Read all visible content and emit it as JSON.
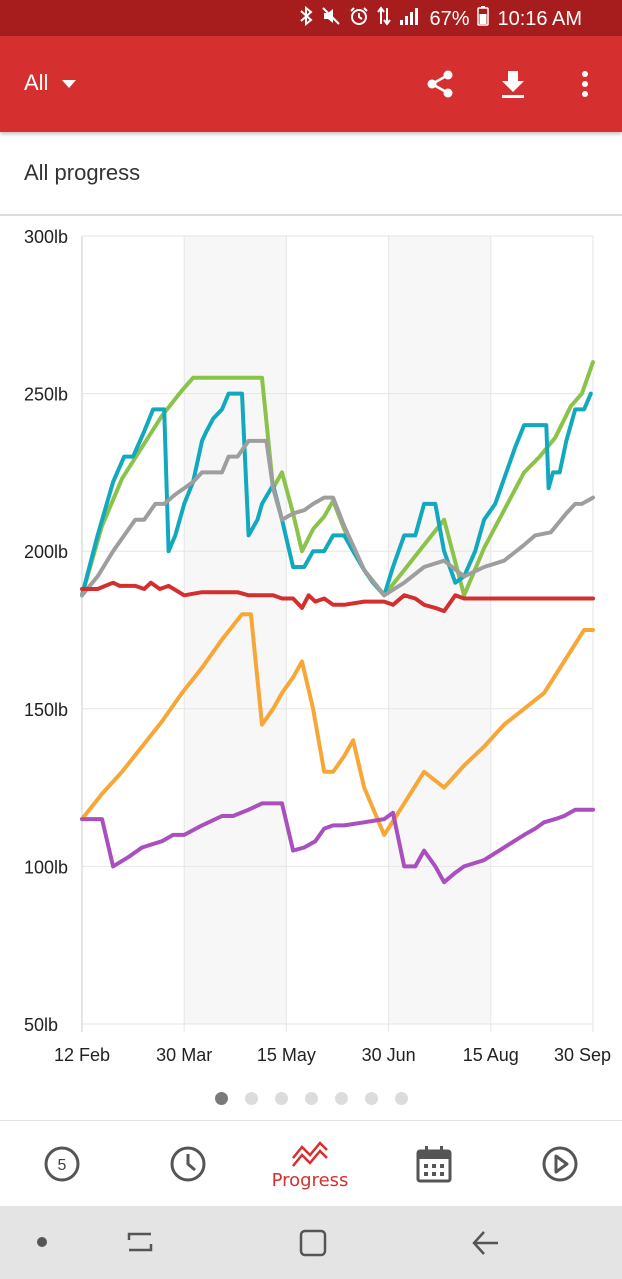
{
  "status_bar": {
    "battery": "67%",
    "time": "10:16 AM",
    "icons": [
      "bluetooth-icon",
      "mute-icon",
      "alarm-icon",
      "data-icon",
      "signal-icon",
      "battery-icon"
    ]
  },
  "app_bar": {
    "filter_label": "All",
    "actions": [
      "share-icon",
      "download-icon",
      "more-vert-icon"
    ]
  },
  "section": {
    "title": "All progress"
  },
  "colors": {
    "status_bar": "#a71d1d",
    "app_bar": "#d62f2f",
    "accent": "#d62f2f"
  },
  "chart_data": {
    "type": "line",
    "y_tick_labels": [
      "300lb",
      "250lb",
      "200lb",
      "150lb",
      "100lb",
      "50lb"
    ],
    "y_ticks": [
      300,
      250,
      200,
      150,
      100,
      50
    ],
    "ylim": [
      50,
      300
    ],
    "x_tick_labels": [
      "12 Feb",
      "30 Mar",
      "15 May",
      "30 Jun",
      "15 Aug",
      "30 Sep"
    ],
    "x_tick_dates": [
      "2018-02-12",
      "2018-03-30",
      "2018-05-15",
      "2018-06-30",
      "2018-08-15",
      "2018-09-30"
    ],
    "xlim": [
      "2018-02-12",
      "2018-09-30"
    ],
    "grid": true,
    "alternating_bands": true,
    "series": [
      {
        "color": "#8bc34a",
        "points": [
          [
            "2018-02-12",
            186
          ],
          [
            "2018-02-21",
            208
          ],
          [
            "2018-03-02",
            223
          ],
          [
            "2018-03-11",
            233
          ],
          [
            "2018-03-20",
            243
          ],
          [
            "2018-03-29",
            251
          ],
          [
            "2018-04-03",
            255
          ],
          [
            "2018-04-12",
            255
          ],
          [
            "2018-04-21",
            255
          ],
          [
            "2018-04-30",
            255
          ],
          [
            "2018-05-04",
            255
          ],
          [
            "2018-05-09",
            220
          ],
          [
            "2018-05-13",
            225
          ],
          [
            "2018-05-18",
            212
          ],
          [
            "2018-05-22",
            200
          ],
          [
            "2018-05-27",
            207
          ],
          [
            "2018-06-01",
            211
          ],
          [
            "2018-06-05",
            216
          ],
          [
            "2018-06-10",
            207
          ],
          [
            "2018-06-19",
            194
          ],
          [
            "2018-06-28",
            186
          ],
          [
            "2018-07-07",
            194
          ],
          [
            "2018-07-16",
            202
          ],
          [
            "2018-07-25",
            210
          ],
          [
            "2018-08-03",
            186
          ],
          [
            "2018-08-12",
            201
          ],
          [
            "2018-08-21",
            213
          ],
          [
            "2018-08-30",
            225
          ],
          [
            "2018-09-06",
            230
          ],
          [
            "2018-09-13",
            236
          ],
          [
            "2018-09-20",
            246
          ],
          [
            "2018-09-25",
            250
          ],
          [
            "2018-09-30",
            260
          ]
        ]
      },
      {
        "color": "#12a9bf",
        "points": [
          [
            "2018-02-12",
            186
          ],
          [
            "2018-02-19",
            205
          ],
          [
            "2018-02-26",
            222
          ],
          [
            "2018-03-03",
            230
          ],
          [
            "2018-03-07",
            230
          ],
          [
            "2018-03-12",
            238
          ],
          [
            "2018-03-16",
            245
          ],
          [
            "2018-03-21",
            245
          ],
          [
            "2018-03-23",
            200
          ],
          [
            "2018-03-26",
            205
          ],
          [
            "2018-03-30",
            215
          ],
          [
            "2018-04-03",
            222
          ],
          [
            "2018-04-07",
            235
          ],
          [
            "2018-04-09",
            238
          ],
          [
            "2018-04-12",
            242
          ],
          [
            "2018-04-16",
            245
          ],
          [
            "2018-04-19",
            250
          ],
          [
            "2018-04-25",
            250
          ],
          [
            "2018-04-28",
            205
          ],
          [
            "2018-05-02",
            210
          ],
          [
            "2018-05-04",
            215
          ],
          [
            "2018-05-09",
            221
          ],
          [
            "2018-05-13",
            210
          ],
          [
            "2018-05-18",
            195
          ],
          [
            "2018-05-23",
            195
          ],
          [
            "2018-05-27",
            200
          ],
          [
            "2018-06-01",
            200
          ],
          [
            "2018-06-05",
            205
          ],
          [
            "2018-06-10",
            205
          ],
          [
            "2018-06-14",
            200
          ],
          [
            "2018-06-19",
            194
          ],
          [
            "2018-06-23",
            190
          ],
          [
            "2018-06-28",
            186
          ],
          [
            "2018-07-02",
            195
          ],
          [
            "2018-07-07",
            205
          ],
          [
            "2018-07-12",
            205
          ],
          [
            "2018-07-16",
            215
          ],
          [
            "2018-07-21",
            215
          ],
          [
            "2018-07-25",
            200
          ],
          [
            "2018-07-30",
            190
          ],
          [
            "2018-08-03",
            192
          ],
          [
            "2018-08-08",
            200
          ],
          [
            "2018-08-12",
            210
          ],
          [
            "2018-08-17",
            215
          ],
          [
            "2018-08-21",
            223
          ],
          [
            "2018-08-26",
            233
          ],
          [
            "2018-08-30",
            240
          ],
          [
            "2018-09-04",
            240
          ],
          [
            "2018-09-09",
            240
          ],
          [
            "2018-09-10",
            220
          ],
          [
            "2018-09-12",
            225
          ],
          [
            "2018-09-15",
            225
          ],
          [
            "2018-09-18",
            235
          ],
          [
            "2018-09-22",
            245
          ],
          [
            "2018-09-26",
            245
          ],
          [
            "2018-09-29",
            250
          ]
        ]
      },
      {
        "color": "#9e9e9e",
        "points": [
          [
            "2018-02-12",
            186
          ],
          [
            "2018-02-19",
            192
          ],
          [
            "2018-02-26",
            200
          ],
          [
            "2018-03-03",
            205
          ],
          [
            "2018-03-08",
            210
          ],
          [
            "2018-03-12",
            210
          ],
          [
            "2018-03-17",
            215
          ],
          [
            "2018-03-21",
            215
          ],
          [
            "2018-03-26",
            218
          ],
          [
            "2018-03-30",
            220
          ],
          [
            "2018-04-03",
            222
          ],
          [
            "2018-04-07",
            225
          ],
          [
            "2018-04-12",
            225
          ],
          [
            "2018-04-16",
            225
          ],
          [
            "2018-04-19",
            230
          ],
          [
            "2018-04-23",
            230
          ],
          [
            "2018-04-28",
            235
          ],
          [
            "2018-05-02",
            235
          ],
          [
            "2018-05-06",
            235
          ],
          [
            "2018-05-09",
            220
          ],
          [
            "2018-05-13",
            210
          ],
          [
            "2018-05-18",
            212
          ],
          [
            "2018-05-23",
            213
          ],
          [
            "2018-05-27",
            215
          ],
          [
            "2018-06-01",
            217
          ],
          [
            "2018-06-05",
            217
          ],
          [
            "2018-06-10",
            208
          ],
          [
            "2018-06-19",
            194
          ],
          [
            "2018-06-28",
            186
          ],
          [
            "2018-07-07",
            190
          ],
          [
            "2018-07-16",
            195
          ],
          [
            "2018-07-25",
            197
          ],
          [
            "2018-08-03",
            192
          ],
          [
            "2018-08-12",
            195
          ],
          [
            "2018-08-21",
            197
          ],
          [
            "2018-08-30",
            202
          ],
          [
            "2018-09-04",
            205
          ],
          [
            "2018-09-11",
            206
          ],
          [
            "2018-09-18",
            212
          ],
          [
            "2018-09-22",
            215
          ],
          [
            "2018-09-25",
            215
          ],
          [
            "2018-09-30",
            217
          ]
        ]
      },
      {
        "color": "#d32f2f",
        "points": [
          [
            "2018-02-12",
            188
          ],
          [
            "2018-02-19",
            188
          ],
          [
            "2018-02-26",
            190
          ],
          [
            "2018-03-01",
            189
          ],
          [
            "2018-03-08",
            189
          ],
          [
            "2018-03-12",
            188
          ],
          [
            "2018-03-15",
            190
          ],
          [
            "2018-03-19",
            188
          ],
          [
            "2018-03-23",
            189
          ],
          [
            "2018-03-30",
            186
          ],
          [
            "2018-04-07",
            187
          ],
          [
            "2018-04-16",
            187
          ],
          [
            "2018-04-23",
            187
          ],
          [
            "2018-04-28",
            186
          ],
          [
            "2018-05-02",
            186
          ],
          [
            "2018-05-06",
            186
          ],
          [
            "2018-05-09",
            186
          ],
          [
            "2018-05-13",
            185
          ],
          [
            "2018-05-18",
            185
          ],
          [
            "2018-05-22",
            182
          ],
          [
            "2018-05-25",
            186
          ],
          [
            "2018-05-28",
            184
          ],
          [
            "2018-06-01",
            185
          ],
          [
            "2018-06-05",
            183
          ],
          [
            "2018-06-10",
            183
          ],
          [
            "2018-06-19",
            184
          ],
          [
            "2018-06-28",
            184
          ],
          [
            "2018-07-02",
            183
          ],
          [
            "2018-07-07",
            186
          ],
          [
            "2018-07-12",
            185
          ],
          [
            "2018-07-16",
            183
          ],
          [
            "2018-07-21",
            182
          ],
          [
            "2018-07-25",
            181
          ],
          [
            "2018-07-30",
            186
          ],
          [
            "2018-08-03",
            185
          ],
          [
            "2018-08-12",
            185
          ],
          [
            "2018-08-21",
            185
          ],
          [
            "2018-08-30",
            185
          ],
          [
            "2018-09-08",
            185
          ],
          [
            "2018-09-17",
            185
          ],
          [
            "2018-09-26",
            185
          ],
          [
            "2018-09-30",
            185
          ]
        ]
      },
      {
        "color": "#f7a738",
        "points": [
          [
            "2018-02-12",
            115
          ],
          [
            "2018-02-21",
            123
          ],
          [
            "2018-03-02",
            130
          ],
          [
            "2018-03-11",
            138
          ],
          [
            "2018-03-20",
            146
          ],
          [
            "2018-03-29",
            155
          ],
          [
            "2018-04-07",
            163
          ],
          [
            "2018-04-16",
            172
          ],
          [
            "2018-04-25",
            180
          ],
          [
            "2018-04-29",
            180
          ],
          [
            "2018-05-04",
            145
          ],
          [
            "2018-05-09",
            150
          ],
          [
            "2018-05-13",
            155
          ],
          [
            "2018-05-18",
            160
          ],
          [
            "2018-05-22",
            165
          ],
          [
            "2018-05-27",
            150
          ],
          [
            "2018-06-01",
            130
          ],
          [
            "2018-06-05",
            130
          ],
          [
            "2018-06-10",
            135
          ],
          [
            "2018-06-14",
            140
          ],
          [
            "2018-06-19",
            125
          ],
          [
            "2018-06-28",
            110
          ],
          [
            "2018-07-07",
            120
          ],
          [
            "2018-07-16",
            130
          ],
          [
            "2018-07-25",
            125
          ],
          [
            "2018-08-03",
            132
          ],
          [
            "2018-08-12",
            138
          ],
          [
            "2018-08-21",
            145
          ],
          [
            "2018-08-30",
            150
          ],
          [
            "2018-09-08",
            155
          ],
          [
            "2018-09-17",
            165
          ],
          [
            "2018-09-26",
            175
          ],
          [
            "2018-09-30",
            175
          ]
        ]
      },
      {
        "color": "#a94fbf",
        "points": [
          [
            "2018-02-12",
            115
          ],
          [
            "2018-02-21",
            115
          ],
          [
            "2018-02-26",
            100
          ],
          [
            "2018-03-05",
            103
          ],
          [
            "2018-03-11",
            106
          ],
          [
            "2018-03-20",
            108
          ],
          [
            "2018-03-25",
            110
          ],
          [
            "2018-03-30",
            110
          ],
          [
            "2018-04-07",
            113
          ],
          [
            "2018-04-16",
            116
          ],
          [
            "2018-04-21",
            116
          ],
          [
            "2018-04-28",
            118
          ],
          [
            "2018-05-04",
            120
          ],
          [
            "2018-05-09",
            120
          ],
          [
            "2018-05-13",
            120
          ],
          [
            "2018-05-18",
            105
          ],
          [
            "2018-05-23",
            106
          ],
          [
            "2018-05-28",
            108
          ],
          [
            "2018-06-01",
            112
          ],
          [
            "2018-06-05",
            113
          ],
          [
            "2018-06-10",
            113
          ],
          [
            "2018-06-19",
            114
          ],
          [
            "2018-06-28",
            115
          ],
          [
            "2018-07-02",
            117
          ],
          [
            "2018-07-07",
            100
          ],
          [
            "2018-07-12",
            100
          ],
          [
            "2018-07-16",
            105
          ],
          [
            "2018-07-21",
            100
          ],
          [
            "2018-07-25",
            95
          ],
          [
            "2018-07-30",
            98
          ],
          [
            "2018-08-03",
            100
          ],
          [
            "2018-08-12",
            102
          ],
          [
            "2018-08-21",
            106
          ],
          [
            "2018-08-30",
            110
          ],
          [
            "2018-09-04",
            112
          ],
          [
            "2018-09-08",
            114
          ],
          [
            "2018-09-13",
            115
          ],
          [
            "2018-09-17",
            116
          ],
          [
            "2018-09-22",
            118
          ],
          [
            "2018-09-26",
            118
          ],
          [
            "2018-09-30",
            118
          ]
        ]
      }
    ]
  },
  "pager": {
    "count": 7,
    "active_index": 0
  },
  "bottom_nav": {
    "active_label": "Progress",
    "day_badge": "5",
    "items": [
      "workout-circle-icon",
      "history-clock-icon",
      "progress-chart-icon",
      "calendar-icon",
      "play-icon"
    ]
  },
  "system_nav": {
    "items": [
      "dot-icon",
      "recents-icon",
      "home-icon",
      "back-icon"
    ]
  }
}
